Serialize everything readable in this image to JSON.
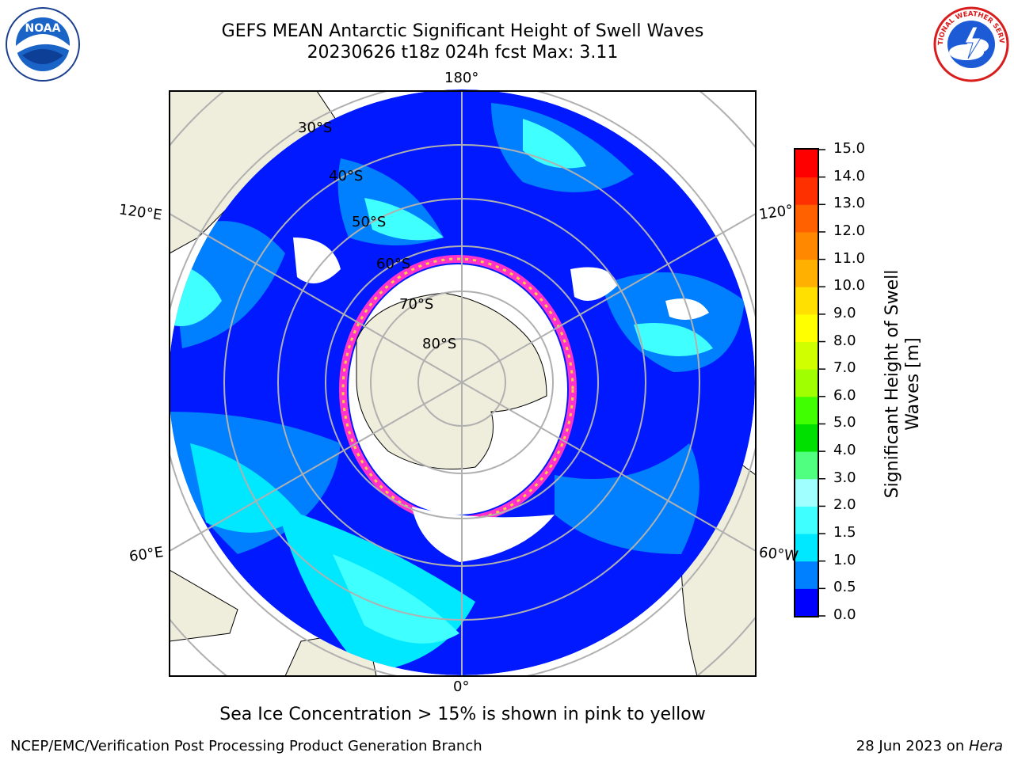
{
  "header": {
    "title_line1": "GEFS MEAN Antarctic Significant Height of Swell Waves",
    "title_line2": "20230626 t18z 024h fcst   Max: 3.11"
  },
  "logos": {
    "left": "NOAA",
    "right": "NATIONAL WEATHER SERVICE"
  },
  "map": {
    "projection": "south-polar-stereographic",
    "longitude_labels": [
      "180°",
      "120°E",
      "120°",
      "60°E",
      "60°W",
      "0°"
    ],
    "latitude_labels": [
      "30°S",
      "40°S",
      "50°S",
      "60°S",
      "70°S",
      "80°S"
    ],
    "colors": {
      "land": "#efeedc",
      "ocean_low": "#0019ff",
      "ice_edge": "#ff33cc",
      "sea_ice": "#ffffff"
    }
  },
  "colorbar": {
    "label": "Significant Height of Swell Waves [m]",
    "label_line1": "Significant Height of Swell",
    "label_line2": "Waves [m]",
    "ticks": [
      "0.0",
      "0.5",
      "1.0",
      "1.5",
      "2.0",
      "3.0",
      "4.0",
      "5.0",
      "6.0",
      "7.0",
      "8.0",
      "9.0",
      "10.0",
      "11.0",
      "12.0",
      "13.0",
      "14.0",
      "15.0"
    ],
    "colors": [
      "#0000ff",
      "#0080ff",
      "#00e8ff",
      "#40ffff",
      "#a0ffff",
      "#50ff80",
      "#00e000",
      "#40ff00",
      "#a0ff00",
      "#d0ff00",
      "#ffff00",
      "#ffe000",
      "#ffb000",
      "#ff8800",
      "#ff6000",
      "#ff3000",
      "#ff0000"
    ]
  },
  "note": "Sea Ice Concentration > 15% is shown in pink to yellow",
  "footer": {
    "left": "NCEP/EMC/Verification Post Processing Product Generation Branch",
    "right_date": "28 Jun 2023 on ",
    "right_machine": "Hera"
  }
}
